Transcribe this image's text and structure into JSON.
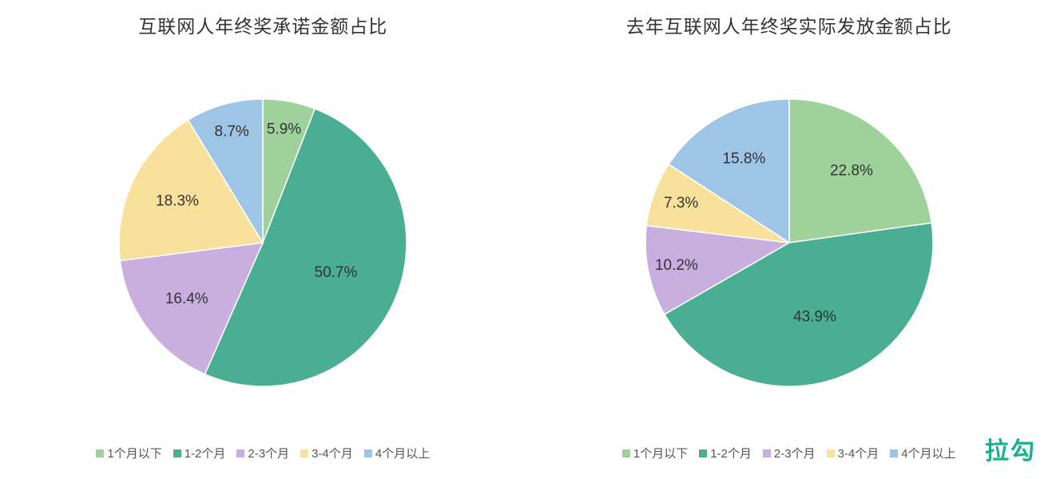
{
  "background_color": "#ffffff",
  "brand": "拉勾",
  "brand_color": "#18b08e",
  "categories": [
    {
      "key": "lt1",
      "label": "1个月以下",
      "color": "#9fd29b"
    },
    {
      "key": "m12",
      "label": "1-2个月",
      "color": "#4aae93"
    },
    {
      "key": "m23",
      "label": "2-3个月",
      "color": "#c9afdf"
    },
    {
      "key": "m34",
      "label": "3-4个月",
      "color": "#f7e19b"
    },
    {
      "key": "gt4",
      "label": "4个月以上",
      "color": "#9fc5e6"
    }
  ],
  "left_chart": {
    "type": "pie",
    "title": "互联网人年终奖承诺金额占比",
    "title_fontsize": 23,
    "label_fontsize": 19,
    "radius": 180,
    "start_angle": 0,
    "slices": [
      {
        "cat": "lt1",
        "value": 5.9,
        "label": "5.9%"
      },
      {
        "cat": "m12",
        "value": 50.7,
        "label": "50.7%"
      },
      {
        "cat": "m23",
        "value": 16.4,
        "label": "16.4%"
      },
      {
        "cat": "m34",
        "value": 18.3,
        "label": "18.3%"
      },
      {
        "cat": "gt4",
        "value": 8.7,
        "label": "8.7%"
      }
    ]
  },
  "right_chart": {
    "type": "pie",
    "title": "去年互联网人年终奖实际发放金额占比",
    "title_fontsize": 23,
    "label_fontsize": 19,
    "radius": 180,
    "start_angle": 0,
    "slices": [
      {
        "cat": "lt1",
        "value": 22.8,
        "label": "22.8%"
      },
      {
        "cat": "m12",
        "value": 43.9,
        "label": "43.9%"
      },
      {
        "cat": "m23",
        "value": 10.2,
        "label": "10.2%"
      },
      {
        "cat": "m34",
        "value": 7.3,
        "label": "7.3%"
      },
      {
        "cat": "gt4",
        "value": 15.8,
        "label": "15.8%"
      }
    ]
  }
}
